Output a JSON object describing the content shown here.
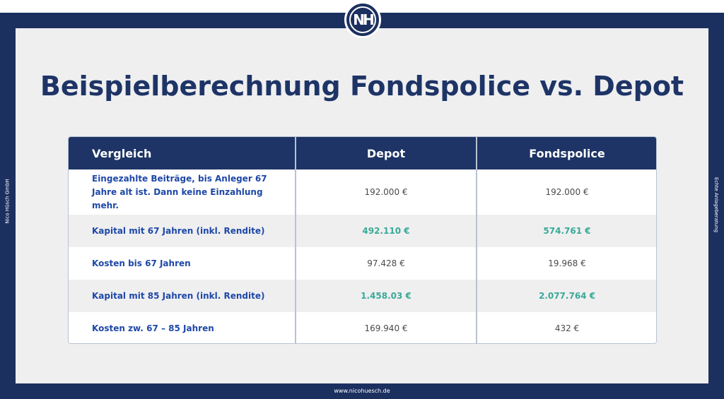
{
  "page": {
    "title": "Beispielberechnung Fondspolice vs. Depot",
    "logo_text": "NH",
    "side_left": "Nico Hüsch GmbH",
    "side_right": "Echte Anlageberatung",
    "footer": "www.nicohuesch.de"
  },
  "table": {
    "headers": [
      "Vergleich",
      "Depot",
      "Fondspolice"
    ],
    "rows": [
      {
        "label": "Eingezahlte Beiträge, bis Anleger 67 Jahre alt ist. Dann keine Einzahlung mehr.",
        "depot": "192.000 €",
        "fondspolice": "192.000 €"
      },
      {
        "label": "Kapital mit 67 Jahren (inkl. Rendite)",
        "depot": "492.110 €",
        "fondspolice": "574.761 €"
      },
      {
        "label": "Kosten bis 67 Jahren",
        "depot": "97.428 €",
        "fondspolice": "19.968 €"
      },
      {
        "label": "Kapital mit 85 Jahren (inkl. Rendite)",
        "depot": "1.458.03 €",
        "fondspolice": "2.077.764 €"
      },
      {
        "label": "Kosten zw. 67 – 85 Jahren",
        "depot": "169.940 €",
        "fondspolice": "432 €"
      }
    ]
  },
  "colors": {
    "navy": "#1c3060",
    "label_blue": "#1e48a8",
    "green": "#3aa997"
  }
}
